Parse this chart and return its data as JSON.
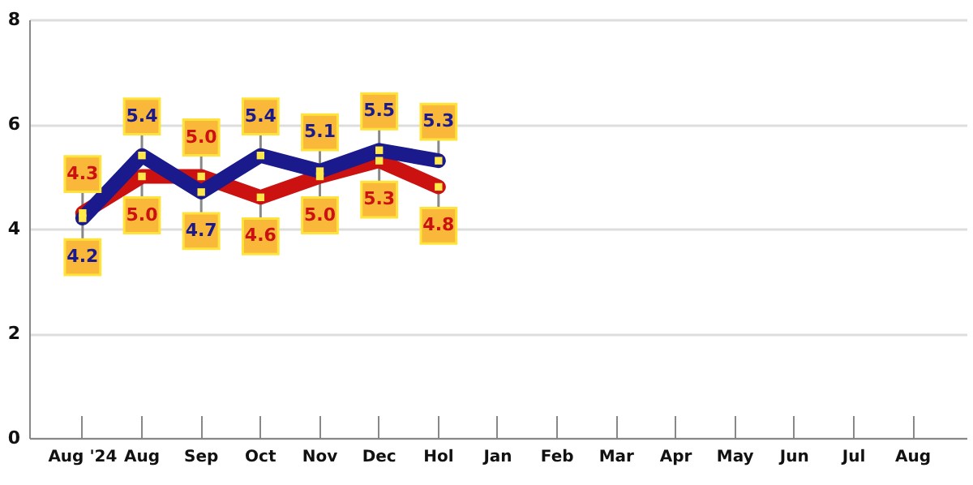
{
  "chart_data": {
    "type": "line",
    "categories": [
      "Aug '24",
      "Aug",
      "Sep",
      "Oct",
      "Nov",
      "Dec",
      "Hol",
      "Jan",
      "Feb",
      "Mar",
      "Apr",
      "May",
      "Jun",
      "Jul",
      "Aug"
    ],
    "series": [
      {
        "color": "#cc1111",
        "values": [
          4.3,
          5.0,
          5.0,
          4.6,
          5.0,
          5.3,
          4.8,
          null,
          null,
          null,
          null,
          null,
          null,
          null,
          null
        ],
        "value_labels": [
          "4.3",
          "5.0",
          "5.0",
          "4.6",
          "5.0",
          "5.3",
          "4.8",
          null,
          null,
          null,
          null,
          null,
          null,
          null,
          null
        ]
      },
      {
        "color": "#1a1a8c",
        "values": [
          4.2,
          5.4,
          4.7,
          5.4,
          5.1,
          5.5,
          5.3,
          null,
          null,
          null,
          null,
          null,
          null,
          null,
          null
        ],
        "value_labels": [
          "4.2",
          "5.4",
          "4.7",
          "5.4",
          "5.1",
          "5.5",
          "5.3",
          null,
          null,
          null,
          null,
          null,
          null,
          null,
          null
        ]
      }
    ],
    "ylim": [
      0,
      8
    ],
    "yticks": [
      0,
      2,
      4,
      6,
      8
    ],
    "grid": "y",
    "marker": "square",
    "legend": false
  }
}
